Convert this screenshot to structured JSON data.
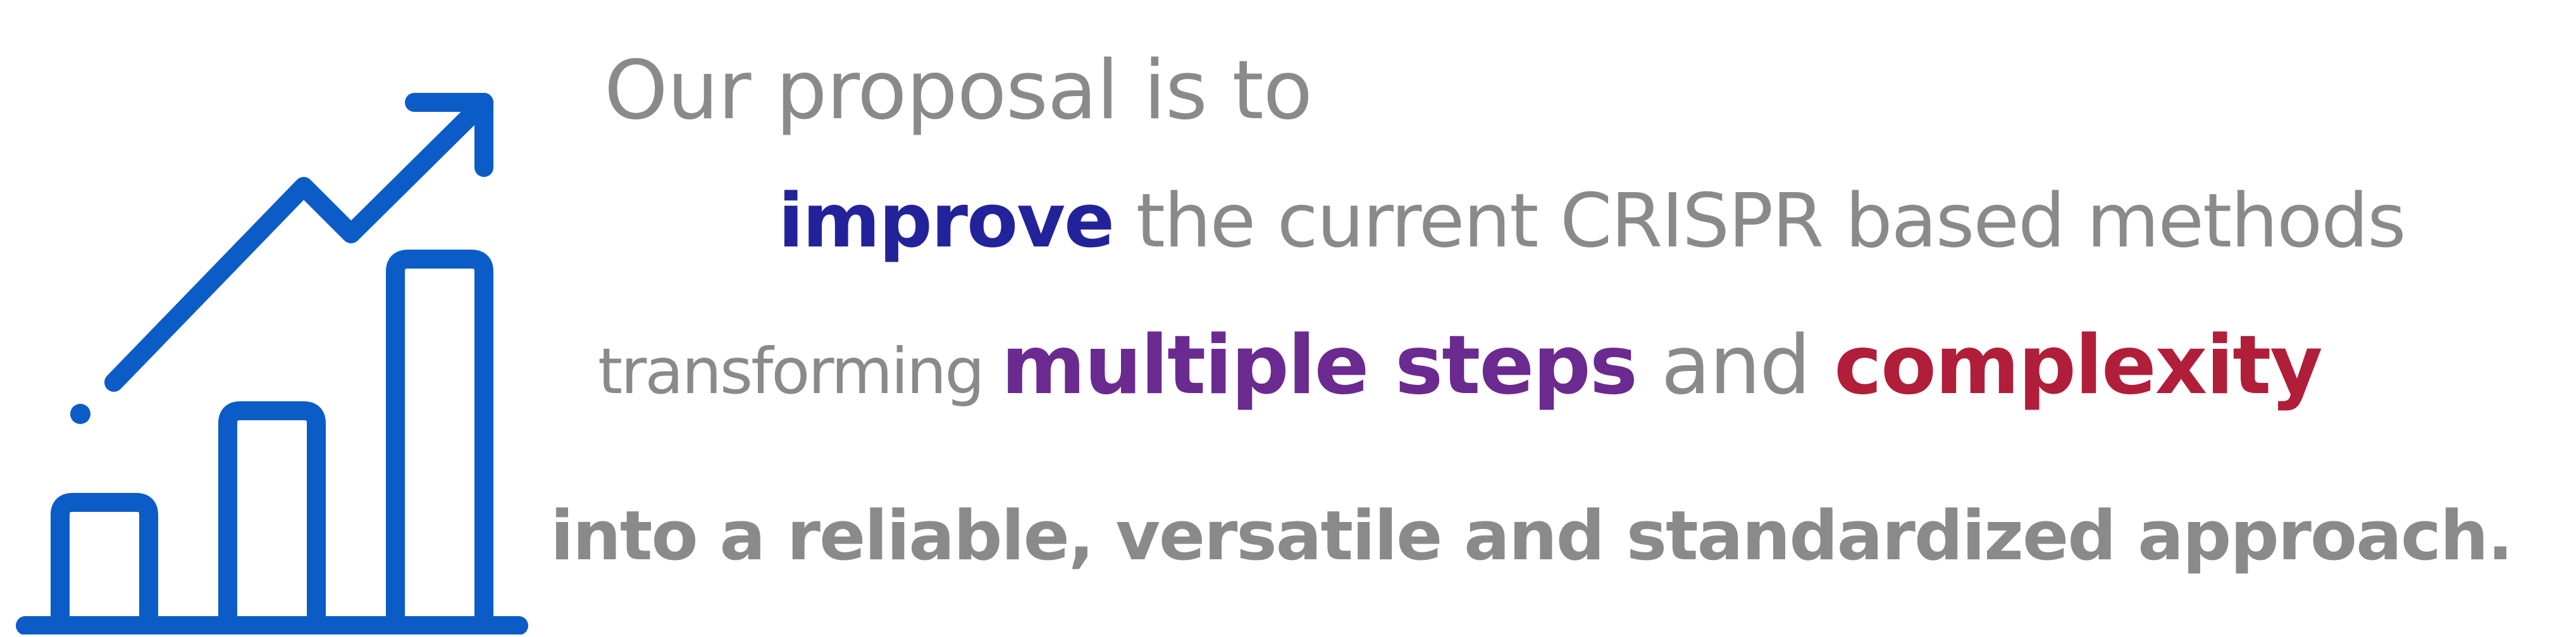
{
  "colors": {
    "icon": "#0b5cc7",
    "gray": "#8a8a8a",
    "navy": "#22239a",
    "purple": "#6a2a8f",
    "crimson": "#b01e3a"
  },
  "icon": {
    "name": "growth-chart-icon"
  },
  "text": {
    "line1": "Our proposal is to",
    "line2_emphasis": "improve",
    "line2_rest": " the current CRISPR based methods",
    "line3_lead": "transforming ",
    "line3_emphasis1": "multiple steps",
    "line3_mid": " and ",
    "line3_emphasis2": "complexity",
    "line4": "into a reliable, versatile and standardized approach."
  }
}
